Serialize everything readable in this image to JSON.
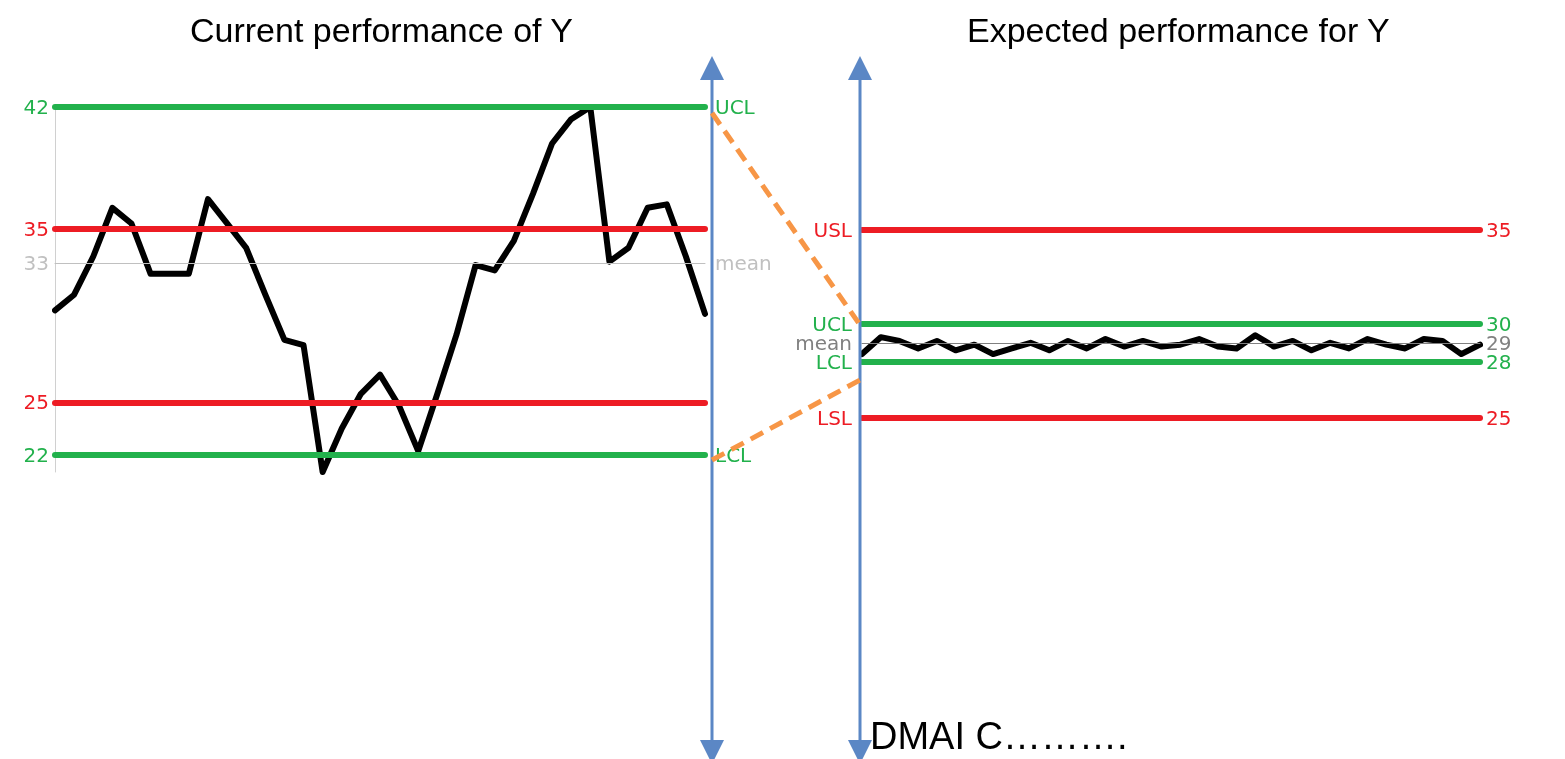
{
  "chart_data": [
    {
      "type": "line",
      "title": "Current performance of Y",
      "tick_labels": "y",
      "grid": false,
      "marker": "none",
      "categories": [
        null,
        null,
        null,
        null,
        null,
        null,
        null,
        null,
        null,
        null,
        null,
        null,
        null,
        null,
        null,
        null,
        null,
        null,
        null,
        null,
        null,
        null,
        null,
        null,
        null,
        null,
        null,
        null,
        null,
        null,
        null,
        null,
        null,
        null,
        null
      ],
      "series": [
        {
          "color": "#000000",
          "values": [
            30.3,
            31.2,
            33.4,
            36.2,
            35.3,
            32.4,
            32.4,
            32.4,
            36.7,
            35.3,
            33.9,
            31.2,
            28.6,
            28.3,
            21.0,
            23.5,
            25.5,
            26.6,
            24.8,
            22.2,
            25.5,
            28.9,
            32.9,
            32.6,
            34.3,
            37.0,
            39.9,
            41.3,
            42.0,
            33.1,
            33.9,
            36.2,
            36.4,
            33.4,
            30.1
          ]
        }
      ],
      "ylim": [
        21,
        42
      ],
      "yticks": [
        22,
        25,
        33,
        35,
        42
      ],
      "ref_lines": [
        {
          "axis": "y",
          "value": 42,
          "label": "UCL",
          "color": "#22b14c"
        },
        {
          "axis": "y",
          "value": 35,
          "label": null,
          "color": "#ed1c24"
        },
        {
          "axis": "y",
          "value": 33,
          "label": "mean",
          "color": "#c0c0c0"
        },
        {
          "axis": "y",
          "value": 25,
          "label": null,
          "color": "#ed1c24"
        },
        {
          "axis": "y",
          "value": 22,
          "label": "LCL",
          "color": "#22b14c"
        }
      ]
    },
    {
      "type": "line",
      "title": "Expected performance for Y",
      "tick_labels": "y",
      "grid": false,
      "marker": "none",
      "annotations": [
        "DMAI C………."
      ],
      "categories": [
        null,
        null,
        null,
        null,
        null,
        null,
        null,
        null,
        null,
        null,
        null,
        null,
        null,
        null,
        null,
        null,
        null,
        null,
        null,
        null,
        null,
        null,
        null,
        null,
        null,
        null,
        null,
        null,
        null,
        null,
        null,
        null,
        null,
        null
      ],
      "series": [
        {
          "color": "#000000",
          "values": [
            28.4,
            29.3,
            29.1,
            28.7,
            29.1,
            28.6,
            28.9,
            28.4,
            28.7,
            29.0,
            28.6,
            29.1,
            28.7,
            29.2,
            28.8,
            29.1,
            28.8,
            28.9,
            29.2,
            28.8,
            28.7,
            29.4,
            28.8,
            29.1,
            28.6,
            29.0,
            28.7,
            29.2,
            28.9,
            28.7,
            29.2,
            29.1,
            28.4,
            28.9
          ]
        }
      ],
      "ylim": [
        25,
        35
      ],
      "yticks": [
        25,
        28,
        29,
        30,
        35
      ],
      "ref_lines": [
        {
          "axis": "y",
          "value": 35,
          "label": "USL",
          "color": "#ed1c24"
        },
        {
          "axis": "y",
          "value": 30,
          "label": "UCL",
          "color": "#22b14c"
        },
        {
          "axis": "y",
          "value": 29,
          "label": "mean",
          "color": "#808080"
        },
        {
          "axis": "y",
          "value": 28,
          "label": "LCL",
          "color": "#22b14c"
        },
        {
          "axis": "y",
          "value": 25,
          "label": "LSL",
          "color": "#ed1c24"
        }
      ]
    }
  ]
}
